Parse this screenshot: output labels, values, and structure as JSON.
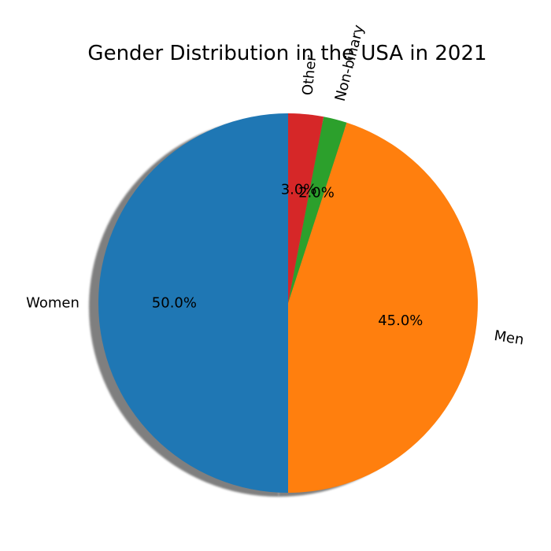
{
  "chart_data": {
    "type": "pie",
    "title": "Gender Distribution in the USA in 2021",
    "categories": [
      "Women",
      "Men",
      "Non-binary",
      "Other"
    ],
    "values": [
      50.0,
      45.0,
      2.0,
      3.0
    ],
    "value_labels": [
      "50.0%",
      "45.0%",
      "2.0%",
      "3.0%"
    ],
    "colors": [
      "#1f77b4",
      "#ff7f0e",
      "#2ca02c",
      "#d62728"
    ],
    "start_angle_deg": 90,
    "direction": "counterclockwise",
    "shadow": true,
    "rotated_labels": true
  }
}
